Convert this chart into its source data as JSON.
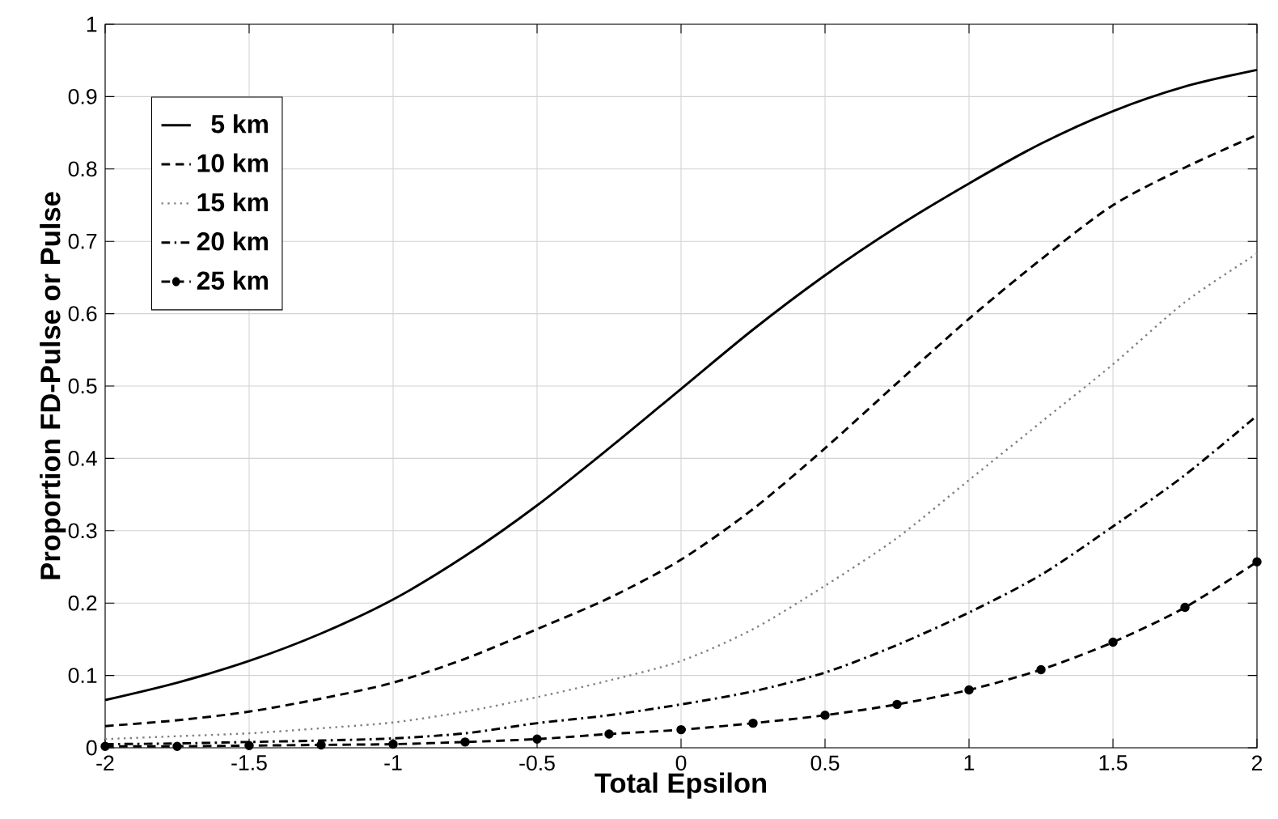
{
  "chart_data": {
    "type": "line",
    "xlabel": "Total Epsilon",
    "ylabel": "Proportion FD-Pulse or Pulse",
    "x": [
      -2,
      -1.75,
      -1.5,
      -1.25,
      -1,
      -0.75,
      -0.5,
      -0.25,
      0,
      0.25,
      0.5,
      0.75,
      1,
      1.25,
      1.5,
      1.75,
      2
    ],
    "series": [
      {
        "name": "5 km",
        "color": "#000000",
        "line_style": "solid",
        "values": [
          0.066,
          0.09,
          0.12,
          0.158,
          0.205,
          0.265,
          0.335,
          0.414,
          0.496,
          0.578,
          0.653,
          0.72,
          0.78,
          0.835,
          0.88,
          0.914,
          0.937
        ]
      },
      {
        "name": "10 km",
        "color": "#000000",
        "line_style": "dashed",
        "values": [
          0.03,
          0.038,
          0.05,
          0.068,
          0.09,
          0.123,
          0.164,
          0.207,
          0.26,
          0.33,
          0.414,
          0.504,
          0.593,
          0.675,
          0.75,
          0.802,
          0.847
        ]
      },
      {
        "name": "15 km",
        "color": "#808080",
        "line_style": "dotted",
        "values": [
          0.012,
          0.016,
          0.02,
          0.027,
          0.035,
          0.05,
          0.07,
          0.093,
          0.12,
          0.164,
          0.224,
          0.29,
          0.37,
          0.45,
          0.53,
          0.616,
          0.683
        ]
      },
      {
        "name": "20 km",
        "color": "#000000",
        "line_style": "dashdot",
        "values": [
          0.005,
          0.006,
          0.008,
          0.01,
          0.013,
          0.02,
          0.034,
          0.045,
          0.06,
          0.078,
          0.104,
          0.142,
          0.187,
          0.239,
          0.306,
          0.377,
          0.459
        ]
      },
      {
        "name": "25 km",
        "color": "#000000",
        "line_style": "dashed",
        "marker": "circle",
        "values": [
          0.002,
          0.002,
          0.003,
          0.004,
          0.005,
          0.008,
          0.012,
          0.019,
          0.025,
          0.034,
          0.045,
          0.06,
          0.08,
          0.108,
          0.146,
          0.194,
          0.257
        ]
      }
    ],
    "xlim": [
      -2,
      2
    ],
    "ylim": [
      0,
      1
    ],
    "xticks": [
      -2,
      -1.5,
      -1,
      -0.5,
      0,
      0.5,
      1,
      1.5,
      2
    ],
    "yticks": [
      0,
      0.1,
      0.2,
      0.3,
      0.4,
      0.5,
      0.6,
      0.7,
      0.8,
      0.9,
      1
    ],
    "grid": true,
    "legend": "top left"
  }
}
